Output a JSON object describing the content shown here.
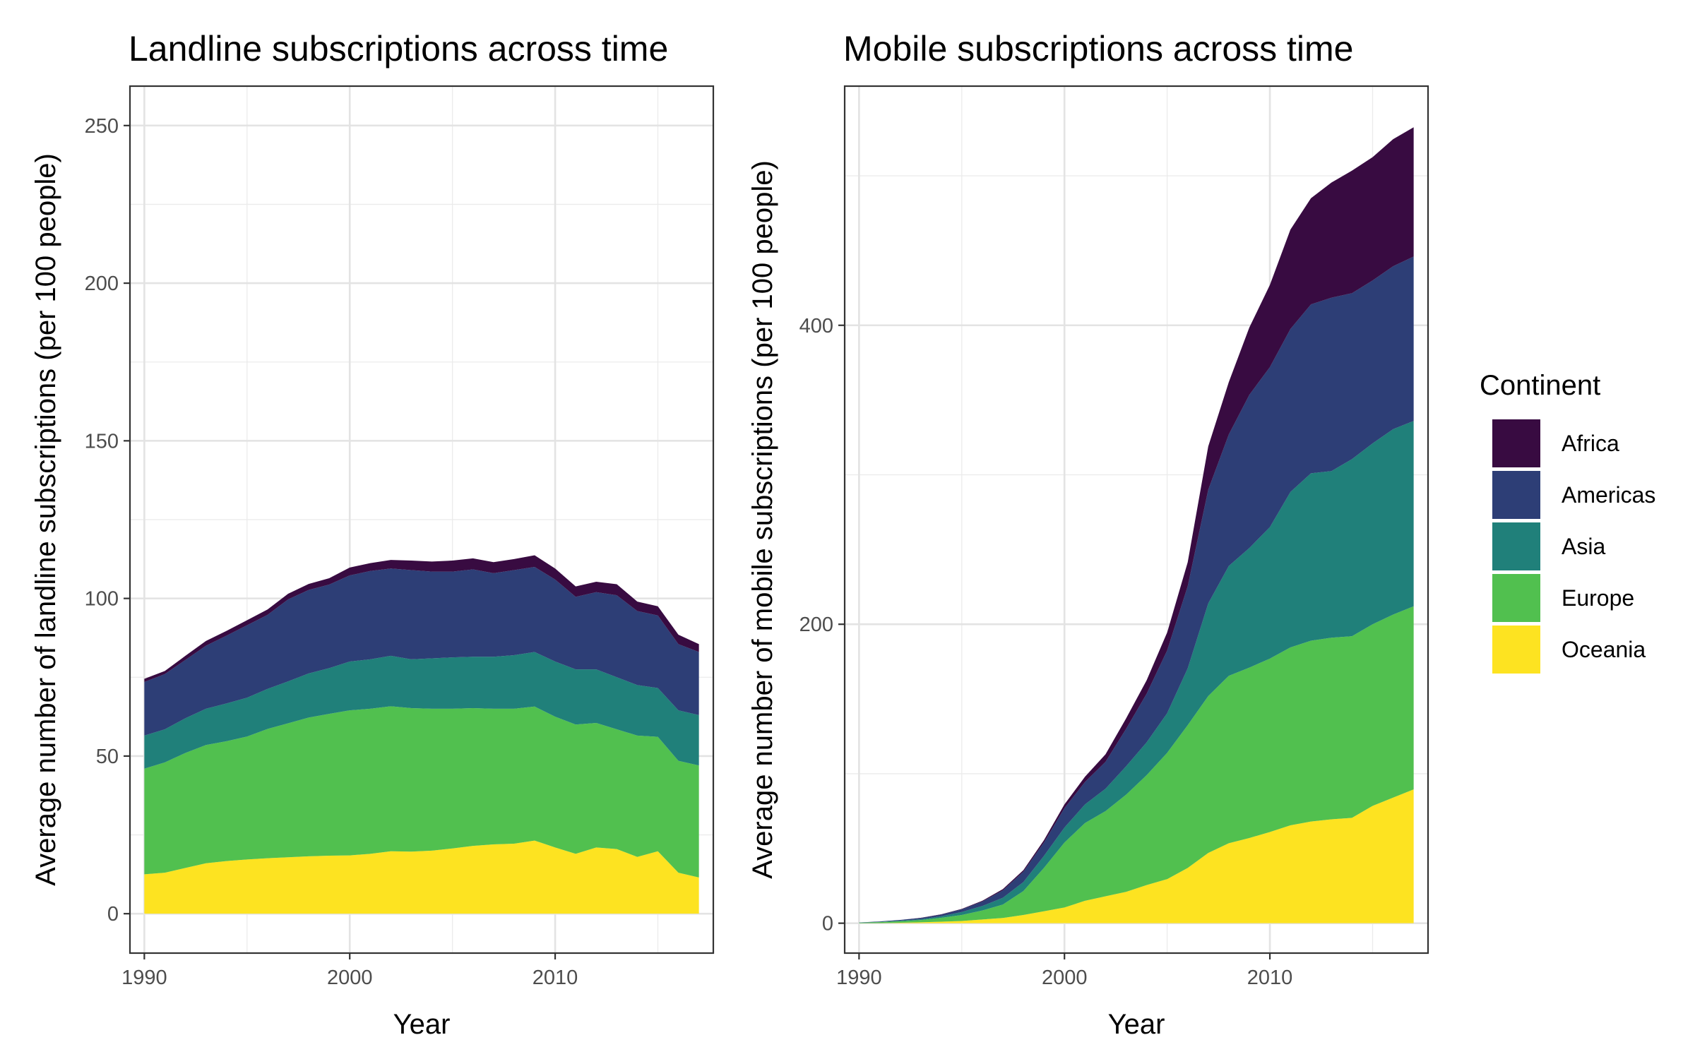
{
  "chart_data": [
    {
      "type": "area",
      "stacked": true,
      "title": "Landline subscriptions across time",
      "xlabel": "Year",
      "ylabel": "Average number of landline subscriptions (per 100 people)",
      "xlim": [
        1989.3,
        2017.7
      ],
      "ylim": [
        -12.5,
        262.5
      ],
      "x_ticks": [
        1990,
        2000,
        2010
      ],
      "y_ticks": [
        0,
        50,
        100,
        150,
        200,
        250
      ],
      "grid": true,
      "x": [
        1990,
        1991,
        1992,
        1993,
        1994,
        1995,
        1996,
        1997,
        1998,
        1999,
        2000,
        2001,
        2002,
        2003,
        2004,
        2005,
        2006,
        2007,
        2008,
        2009,
        2010,
        2011,
        2012,
        2013,
        2014,
        2015,
        2016,
        2017
      ],
      "series": [
        {
          "name": "Oceania",
          "values": [
            12.5,
            13,
            14.5,
            16,
            16.7,
            17.2,
            17.6,
            17.9,
            18.2,
            18.4,
            18.5,
            19,
            19.8,
            19.7,
            20,
            20.7,
            21.5,
            22,
            22.2,
            23.2,
            21,
            19,
            21,
            20.5,
            18,
            19.8,
            13,
            11.5
          ]
        },
        {
          "name": "Europe",
          "values": [
            33.5,
            35,
            36.5,
            37.5,
            38,
            39,
            41,
            42.5,
            44,
            45,
            46,
            46,
            46,
            45.5,
            45,
            44.3,
            43.7,
            43,
            42.8,
            42.5,
            41.5,
            41,
            39.5,
            38,
            38.5,
            36.3,
            35.5,
            35.5
          ]
        },
        {
          "name": "Asia",
          "values": [
            10.5,
            10.5,
            11,
            11.5,
            12,
            12.3,
            12.7,
            13.3,
            14,
            14.5,
            15.5,
            15.7,
            16,
            15.5,
            16,
            16.3,
            16.3,
            16.5,
            17,
            17.3,
            17.5,
            17.5,
            17,
            16.5,
            16,
            15.5,
            16,
            16
          ]
        },
        {
          "name": "Americas",
          "values": [
            17,
            17.5,
            18.5,
            20,
            21.5,
            23,
            23.5,
            26,
            26.5,
            26.5,
            27.3,
            28,
            27.7,
            28.3,
            27.5,
            27.2,
            27.7,
            26.5,
            27,
            27,
            26,
            23,
            24.5,
            26,
            23.5,
            23,
            21,
            20
          ]
        },
        {
          "name": "Africa",
          "values": [
            1,
            1,
            1.3,
            1.5,
            1.5,
            1.6,
            1.7,
            1.8,
            1.9,
            2,
            2.5,
            2.5,
            2.7,
            3,
            3.2,
            3.5,
            3.5,
            3.5,
            3.5,
            3.7,
            3.5,
            3.3,
            3.3,
            3.5,
            3,
            2.9,
            3,
            2.5
          ]
        }
      ]
    },
    {
      "type": "area",
      "stacked": true,
      "title": "Mobile subscriptions across time",
      "xlabel": "Year",
      "ylabel": "Average number of mobile subscriptions (per 100 people)",
      "xlim": [
        1989.3,
        2017.7
      ],
      "ylim": [
        -20,
        560
      ],
      "x_ticks": [
        1990,
        2000,
        2010
      ],
      "y_ticks": [
        0,
        200,
        400
      ],
      "grid": true,
      "x": [
        1990,
        1991,
        1992,
        1993,
        1994,
        1995,
        1996,
        1997,
        1998,
        1999,
        2000,
        2001,
        2002,
        2003,
        2004,
        2005,
        2006,
        2007,
        2008,
        2009,
        2010,
        2011,
        2012,
        2013,
        2014,
        2015,
        2016,
        2017
      ],
      "series": [
        {
          "name": "Oceania",
          "values": [
            0,
            0.1,
            0.3,
            0.6,
            1,
            1.5,
            2.5,
            3.5,
            5.5,
            8,
            10.5,
            15,
            18,
            21,
            25.5,
            29.5,
            37,
            47,
            53.5,
            57,
            61,
            65.5,
            68,
            69.5,
            70.5,
            78.5,
            84,
            89.5
          ]
        },
        {
          "name": "Europe",
          "values": [
            0.3,
            0.6,
            1,
            1.5,
            2.6,
            4,
            6,
            9,
            16,
            29,
            43.5,
            52,
            57,
            65,
            73.5,
            84.5,
            95.5,
            105,
            112,
            114,
            116,
            119,
            121,
            121.5,
            121.5,
            121.5,
            122.5,
            122.5
          ]
        },
        {
          "name": "Asia",
          "values": [
            0.1,
            0.2,
            0.4,
            0.6,
            1,
            2,
            3,
            4.5,
            6,
            8,
            10,
            12.5,
            15,
            19,
            22,
            26.5,
            38,
            62,
            73.5,
            80,
            88,
            104,
            112,
            111.5,
            118.5,
            121,
            124,
            124
          ]
        },
        {
          "name": "Americas",
          "values": [
            0.1,
            0.3,
            0.5,
            0.8,
            1.2,
            1.8,
            3,
            5,
            7,
            9,
            13,
            15,
            18,
            25,
            32.5,
            42,
            55,
            76,
            88,
            102.5,
            107,
            109,
            113,
            116,
            111,
            109,
            109,
            110
          ]
        },
        {
          "name": "Africa",
          "values": [
            0,
            0,
            0,
            0.1,
            0.2,
            0.3,
            0.5,
            0.8,
            1,
            1.5,
            2.5,
            3.5,
            5,
            7,
            9,
            12,
            16,
            29,
            35,
            45,
            55,
            66.5,
            71,
            77,
            82,
            82.5,
            85,
            86.5
          ]
        }
      ]
    }
  ],
  "legend": {
    "title": "Continent",
    "placement": "right",
    "items": [
      {
        "name": "Africa",
        "color": "#380b41"
      },
      {
        "name": "Americas",
        "color": "#2d3e76"
      },
      {
        "name": "Asia",
        "color": "#20807a"
      },
      {
        "name": "Europe",
        "color": "#51c04f"
      },
      {
        "name": "Oceania",
        "color": "#fde321"
      }
    ]
  }
}
